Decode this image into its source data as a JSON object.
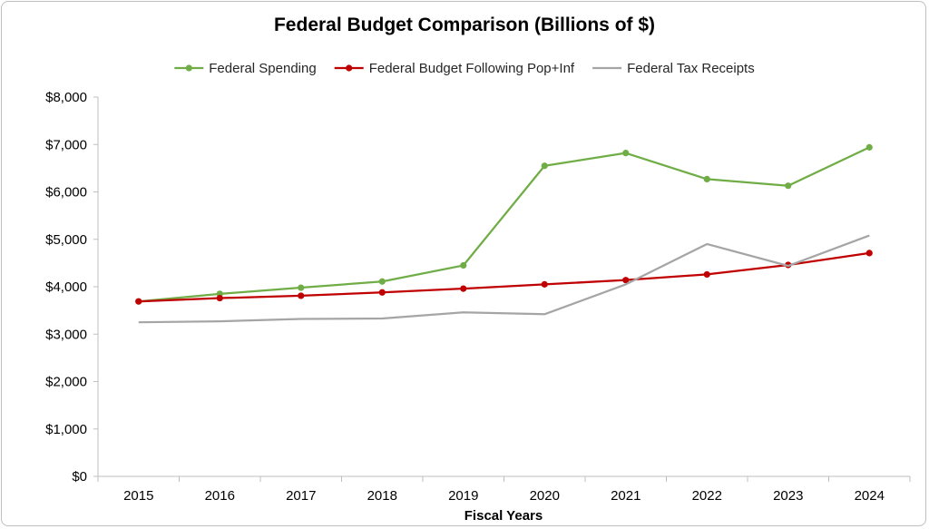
{
  "chart_data": {
    "type": "line",
    "title": "Federal Budget Comparison (Billions of $)",
    "xlabel": "Fiscal Years",
    "ylabel": "",
    "categories": [
      "2015",
      "2016",
      "2017",
      "2018",
      "2019",
      "2020",
      "2021",
      "2022",
      "2023",
      "2024"
    ],
    "ylim": [
      0,
      8000
    ],
    "yticks": [
      0,
      1000,
      2000,
      3000,
      4000,
      5000,
      6000,
      7000,
      8000
    ],
    "ytick_labels": [
      "$0",
      "$1,000",
      "$2,000",
      "$3,000",
      "$4,000",
      "$5,000",
      "$6,000",
      "$7,000",
      "$8,000"
    ],
    "grid": false,
    "legend_position": "top",
    "series": [
      {
        "name": "Federal Spending",
        "color": "#70ad47",
        "markers": true,
        "values": [
          3690,
          3850,
          3980,
          4110,
          4450,
          6550,
          6820,
          6270,
          6130,
          6940
        ]
      },
      {
        "name": "Federal Budget Following Pop+Inf",
        "color": "#c00000",
        "markers": true,
        "values": [
          3690,
          3760,
          3810,
          3880,
          3960,
          4050,
          4140,
          4260,
          4460,
          4710
        ]
      },
      {
        "name": "Federal Tax Receipts",
        "color": "#a5a5a5",
        "markers": false,
        "values": [
          3250,
          3270,
          3320,
          3330,
          3460,
          3420,
          4050,
          4900,
          4440,
          5080
        ]
      }
    ]
  }
}
